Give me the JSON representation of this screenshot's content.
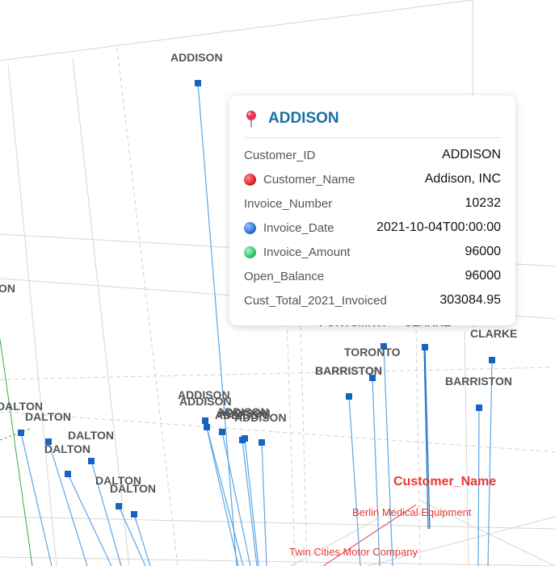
{
  "chart_data": {
    "type": "scatter",
    "subtype": "3d-scatter",
    "axes": {
      "x": {
        "title": "Customer_Name",
        "visible_ticks": [
          "Berlin Medical Equipment",
          "Twin Cities Motor Company"
        ]
      }
    },
    "points": [
      {
        "customer_id": "ADDISON"
      },
      {
        "customer_id": "ON"
      },
      {
        "customer_id": "DALTON"
      },
      {
        "customer_id": "DALTON"
      },
      {
        "customer_id": "DALTON"
      },
      {
        "customer_id": "DALTON"
      },
      {
        "customer_id": "DALTON"
      },
      {
        "customer_id": "DALTON"
      },
      {
        "customer_id": "ADDISON"
      },
      {
        "customer_id": "ADDISON"
      },
      {
        "customer_id": "ADDISON"
      },
      {
        "customer_id": "ADDISON"
      },
      {
        "customer_id": "ADDISON"
      },
      {
        "customer_id": "ADDISON"
      },
      {
        "customer_id": "TORONTO"
      },
      {
        "customer_id": "BARRISTON"
      },
      {
        "customer_id": "BARRISTON"
      },
      {
        "customer_id": "CLARKE"
      },
      {
        "customer_id": "BARRISTON"
      }
    ],
    "tooltip": {
      "title": "ADDISON",
      "rows": [
        {
          "key": "Customer_ID",
          "value": "ADDISON",
          "dot": ""
        },
        {
          "key": "Customer_Name",
          "value": "Addison, INC",
          "dot": "#e0202b"
        },
        {
          "key": "Invoice_Number",
          "value": "10232",
          "dot": ""
        },
        {
          "key": "Invoice_Date",
          "value": "2021-10-04T00:00:00",
          "dot": "#2e6fd6"
        },
        {
          "key": "Invoice_Amount",
          "value": "96000",
          "dot": "#2fc46a"
        },
        {
          "key": "Open_Balance",
          "value": "96000",
          "dot": ""
        },
        {
          "key": "Cust_Total_2021_Invoiced",
          "value": "303084.95",
          "dot": ""
        }
      ]
    }
  },
  "colors": {
    "marker": "#1565c0",
    "stem": "#1f6fc6",
    "axis_accent": "#e53935",
    "tooltip_title": "#1a6fa5"
  },
  "icons": {
    "tooltip": "map-pin-icon"
  }
}
